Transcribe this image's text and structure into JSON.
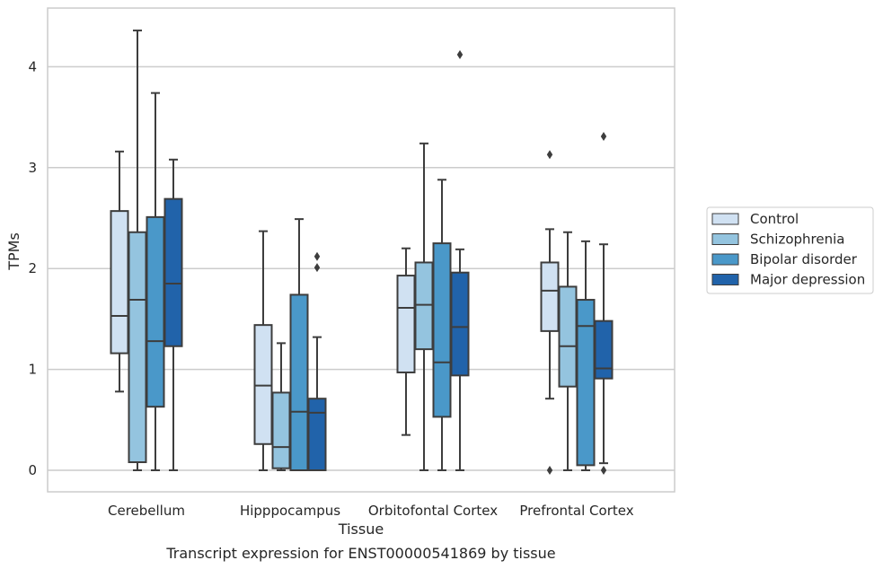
{
  "chart_data": {
    "type": "box",
    "title": "",
    "caption": "Transcript expression for ENST00000541869 by tissue",
    "xlabel": "Tissue",
    "ylabel": "TPMs",
    "ylim": [
      -0.21,
      4.58
    ],
    "yticks": [
      0,
      1,
      2,
      3,
      4
    ],
    "grid": true,
    "legend_position": "right",
    "categories": [
      "Cerebellum",
      "Hipppocampus",
      "Orbitofontal Cortex",
      "Prefrontal Cortex"
    ],
    "series": [
      {
        "name": "Control",
        "color": "#d0e1f2",
        "boxes": [
          {
            "whislo": 0.78,
            "q1": 1.16,
            "med": 1.53,
            "q3": 2.57,
            "whishi": 3.16,
            "fliers": []
          },
          {
            "whislo": 0.0,
            "q1": 0.26,
            "med": 0.84,
            "q3": 1.44,
            "whishi": 2.37,
            "fliers": []
          },
          {
            "whislo": 0.35,
            "q1": 0.97,
            "med": 1.61,
            "q3": 1.93,
            "whishi": 2.2,
            "fliers": []
          },
          {
            "whislo": 0.71,
            "q1": 1.38,
            "med": 1.78,
            "q3": 2.06,
            "whishi": 2.39,
            "fliers": [
              3.13,
              0.0
            ]
          }
        ]
      },
      {
        "name": "Schizophrenia",
        "color": "#94c4df",
        "boxes": [
          {
            "whislo": 0.0,
            "q1": 0.08,
            "med": 1.69,
            "q3": 2.36,
            "whishi": 4.36,
            "fliers": []
          },
          {
            "whislo": 0.0,
            "q1": 0.02,
            "med": 0.23,
            "q3": 0.77,
            "whishi": 1.26,
            "fliers": []
          },
          {
            "whislo": 0.0,
            "q1": 1.2,
            "med": 1.64,
            "q3": 2.06,
            "whishi": 3.24,
            "fliers": []
          },
          {
            "whislo": 0.0,
            "q1": 0.83,
            "med": 1.23,
            "q3": 1.82,
            "whishi": 2.36,
            "fliers": []
          }
        ]
      },
      {
        "name": "Bipolar disorder",
        "color": "#4a98c9",
        "boxes": [
          {
            "whislo": 0.0,
            "q1": 0.63,
            "med": 1.28,
            "q3": 2.51,
            "whishi": 3.74,
            "fliers": []
          },
          {
            "whislo": 0.0,
            "q1": 0.0,
            "med": 0.58,
            "q3": 1.74,
            "whishi": 2.49,
            "fliers": []
          },
          {
            "whislo": 0.0,
            "q1": 0.53,
            "med": 1.07,
            "q3": 2.25,
            "whishi": 2.88,
            "fliers": []
          },
          {
            "whislo": 0.0,
            "q1": 0.05,
            "med": 1.43,
            "q3": 1.69,
            "whishi": 2.27,
            "fliers": []
          }
        ]
      },
      {
        "name": "Major depression",
        "color": "#2163aa",
        "boxes": [
          {
            "whislo": 0.0,
            "q1": 1.23,
            "med": 1.85,
            "q3": 2.69,
            "whishi": 3.08,
            "fliers": []
          },
          {
            "whislo": 0.0,
            "q1": 0.0,
            "med": 0.57,
            "q3": 0.71,
            "whishi": 1.32,
            "fliers": [
              2.01,
              2.12
            ]
          },
          {
            "whislo": 0.0,
            "q1": 0.94,
            "med": 1.42,
            "q3": 1.96,
            "whishi": 2.19,
            "fliers": [
              4.12
            ]
          },
          {
            "whislo": 0.07,
            "q1": 0.91,
            "med": 1.01,
            "q3": 1.48,
            "whishi": 2.24,
            "fliers": [
              3.31,
              0.0
            ]
          }
        ]
      }
    ],
    "colors": {
      "box_edge": "#3d3d3d",
      "grid": "#cccccc",
      "frame": "#cccccc"
    }
  }
}
